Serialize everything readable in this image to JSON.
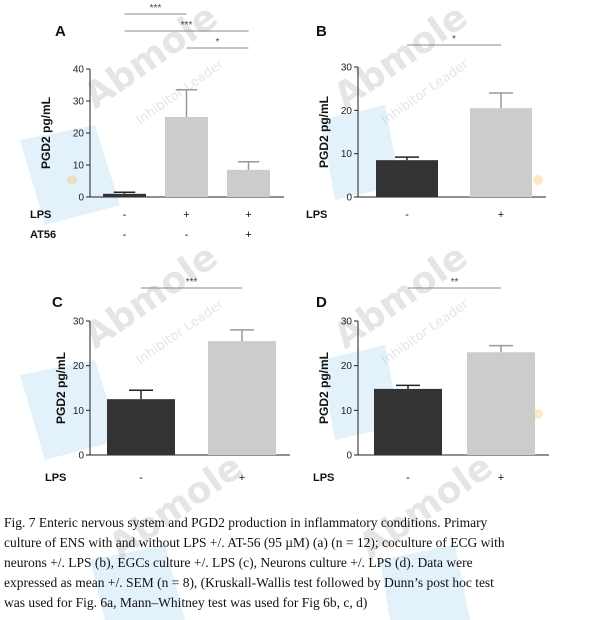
{
  "chart_data": [
    {
      "panel": "A",
      "type": "bar",
      "ylabel": "PGD2 pg/mL",
      "ylim": [
        0,
        40
      ],
      "yticks": [
        0,
        10,
        20,
        30,
        40
      ],
      "rows": [
        {
          "label": "LPS",
          "values": [
            "-",
            "+",
            "+"
          ]
        },
        {
          "label": "AT56",
          "values": [
            "-",
            "-",
            "+"
          ]
        }
      ],
      "values": [
        1,
        25,
        8.5
      ],
      "errors": [
        0.5,
        8.5,
        2.5
      ],
      "colors": [
        "#333333",
        "#cccccc",
        "#cccccc"
      ],
      "significance": [
        {
          "from": 0,
          "to": 1,
          "label": "***"
        },
        {
          "from": 0,
          "to": 2,
          "label": "***"
        },
        {
          "from": 1,
          "to": 2,
          "label": "*"
        }
      ]
    },
    {
      "panel": "B",
      "type": "bar",
      "ylabel": "PGD2 pg/mL",
      "ylim": [
        0,
        30
      ],
      "yticks": [
        0,
        10,
        20,
        30
      ],
      "rows": [
        {
          "label": "LPS",
          "values": [
            "-",
            "+"
          ]
        }
      ],
      "values": [
        8.5,
        20.5
      ],
      "errors": [
        0.7,
        3.5
      ],
      "colors": [
        "#333333",
        "#cccccc"
      ],
      "significance": [
        {
          "from": 0,
          "to": 1,
          "label": "*"
        }
      ]
    },
    {
      "panel": "C",
      "type": "bar",
      "ylabel": "PGD2 pg/mL",
      "ylim": [
        0,
        30
      ],
      "yticks": [
        0,
        10,
        20,
        30
      ],
      "rows": [
        {
          "label": "LPS",
          "values": [
            "-",
            "+"
          ]
        }
      ],
      "values": [
        12.5,
        25.5
      ],
      "errors": [
        2,
        2.5
      ],
      "colors": [
        "#333333",
        "#cccccc"
      ],
      "significance": [
        {
          "from": 0,
          "to": 1,
          "label": "***"
        }
      ]
    },
    {
      "panel": "D",
      "type": "bar",
      "ylabel": "PGD2 pg/mL",
      "ylim": [
        0,
        30
      ],
      "yticks": [
        0,
        10,
        20,
        30
      ],
      "rows": [
        {
          "label": "LPS",
          "values": [
            "-",
            "+"
          ]
        }
      ],
      "values": [
        14.8,
        23
      ],
      "errors": [
        0.8,
        1.5
      ],
      "colors": [
        "#333333",
        "#cccccc"
      ],
      "significance": [
        {
          "from": 0,
          "to": 1,
          "label": "**"
        }
      ]
    }
  ],
  "watermark": {
    "brand": "Abmole",
    "tagline": "Inhibitor Leader"
  },
  "caption": {
    "lines": [
      "Fig. 7 Enteric nervous system and PGD2 production in inflammatory conditions. Primary",
      "culture of ENS with and without LPS +/. AT-56 (95 µM) (a) (n = 12); coculture of ECG with",
      "neurons +/. LPS (b), EGCs culture +/. LPS (c), Neurons culture +/. LPS (d). Data were",
      "expressed as mean +/. SEM (n = 8), (Kruskall-Wallis test followed by Dunn’s post hoc test",
      "was used for Fig. 6a, Mann–Whitney test was used for Fig 6b, c, d)"
    ]
  }
}
